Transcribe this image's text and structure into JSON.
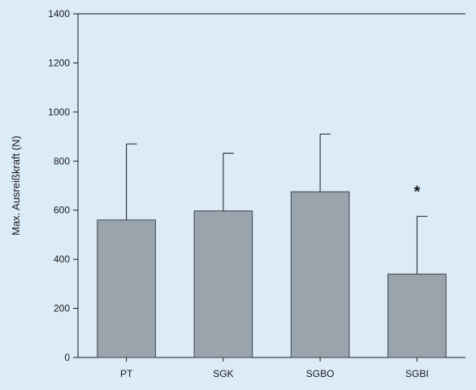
{
  "chart_data": {
    "type": "bar",
    "categories": [
      "PT",
      "SGK",
      "SGBO",
      "SGBI"
    ],
    "values": [
      560,
      597,
      675,
      340
    ],
    "error_upper": [
      870,
      832,
      910,
      575
    ],
    "ylabel": "Max. Ausreißkraft (N)",
    "xlabel": "",
    "ylim": [
      0,
      1400
    ],
    "yticks": [
      0,
      200,
      400,
      600,
      800,
      1000,
      1200,
      1400
    ],
    "annotations": [
      {
        "category": "SGBI",
        "text": "*"
      }
    ],
    "grid": false,
    "colors": {
      "bar_fill": "#9aa4ad",
      "bar_stroke": "#3d4147",
      "axis": "#1a1a1a",
      "background": "#dcebf8"
    }
  }
}
